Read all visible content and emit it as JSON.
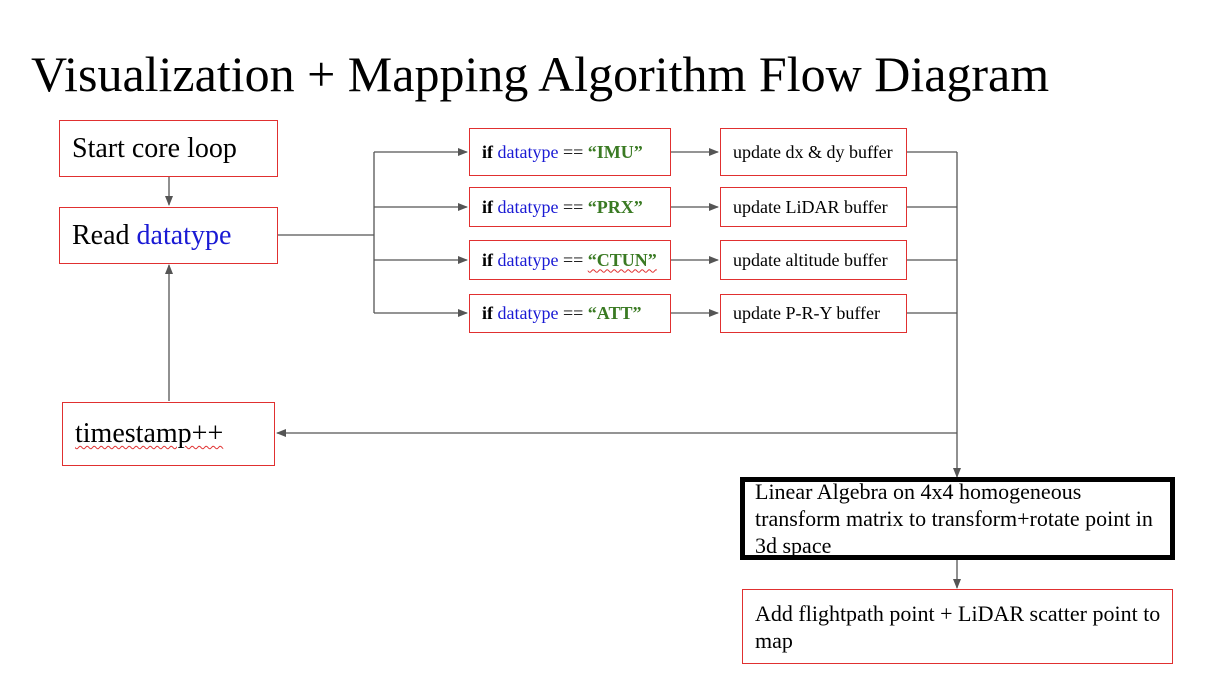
{
  "title": "Visualization + Mapping Algorithm Flow Diagram",
  "nodes": {
    "start": "Start core loop",
    "read": {
      "prefix": "Read ",
      "var": "datatype"
    },
    "timestamp": "timestamp++",
    "conditions": [
      {
        "kw": "if",
        "var": "datatype",
        "op": " == ",
        "value": "“IMU”"
      },
      {
        "kw": "if",
        "var": "datatype",
        "op": " == ",
        "value": "“PRX”"
      },
      {
        "kw": "if",
        "var": "datatype",
        "op": " == ",
        "value": "“CTUN”"
      },
      {
        "kw": "if",
        "var": "datatype",
        "op": " == ",
        "value": "“ATT”"
      }
    ],
    "updates": [
      "update dx & dy buffer",
      "update LiDAR buffer",
      "update altitude buffer",
      "update P-R-Y buffer"
    ],
    "linalg": "Linear Algebra on 4x4 homogeneous transform matrix to transform+rotate point in 3d space",
    "add_point": "Add flightpath point + LiDAR scatter point to map"
  },
  "colors": {
    "box_border": "#e03030",
    "variable": "#1a1ad4",
    "string": "#3a7a23",
    "arrow": "#555555"
  }
}
